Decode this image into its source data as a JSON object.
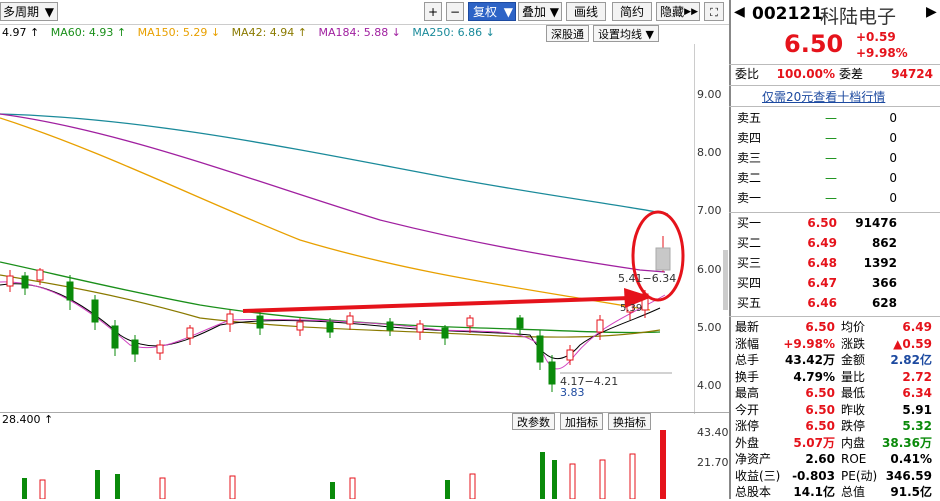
{
  "toolbar": {
    "period": "多周期",
    "plus": "+",
    "minus": "−",
    "fuquan": "复权",
    "diejia": "叠加",
    "huaxian": "画线",
    "jianyue": "简约",
    "yincang": "隐藏"
  },
  "ma_legend": [
    {
      "text": "4.97 ↑",
      "color": "#000000"
    },
    {
      "text": "MA60: 4.93 ↑",
      "color": "#1a8f1a"
    },
    {
      "text": "MA150: 5.29 ↓",
      "color": "#e8a000"
    },
    {
      "text": "MA42: 4.94 ↑",
      "color": "#8a7a00"
    },
    {
      "text": "MA184: 5.88 ↓",
      "color": "#a020a0"
    },
    {
      "text": "MA250: 6.86 ↓",
      "color": "#1a8a9a"
    }
  ],
  "chart_buttons": {
    "shenguntong": "深股通",
    "ma_settings": "设置均线"
  },
  "price_axis": [
    "9.00",
    "8.00",
    "7.00",
    "6.00",
    "5.00",
    "4.00"
  ],
  "annotations": {
    "range_high": "5.41−6.34",
    "range_low": "4.17−4.21",
    "low_mark": "3.83",
    "mid_label": "5.39"
  },
  "volume": {
    "left_label": "28.400 ↑",
    "buttons": [
      "改参数",
      "加指标",
      "换指标"
    ],
    "axis": [
      "43.40",
      "21.70"
    ]
  },
  "quote": {
    "code": "002121",
    "name": "科陆电子",
    "price": "6.50",
    "change": "+0.59",
    "change_pct": "+9.98%",
    "weibi_label": "委比",
    "weibi": "100.00%",
    "weicha_label": "委差",
    "weicha": "94724",
    "promo": "仅需20元查看十档行情",
    "sell": [
      {
        "label": "卖五",
        "price": "—",
        "vol": "0"
      },
      {
        "label": "卖四",
        "price": "—",
        "vol": "0"
      },
      {
        "label": "卖三",
        "price": "—",
        "vol": "0"
      },
      {
        "label": "卖二",
        "price": "—",
        "vol": "0"
      },
      {
        "label": "卖一",
        "price": "—",
        "vol": "0"
      }
    ],
    "buy": [
      {
        "label": "买一",
        "price": "6.50",
        "vol": "91476"
      },
      {
        "label": "买二",
        "price": "6.49",
        "vol": "862"
      },
      {
        "label": "买三",
        "price": "6.48",
        "vol": "1392"
      },
      {
        "label": "买四",
        "price": "6.47",
        "vol": "366"
      },
      {
        "label": "买五",
        "price": "6.46",
        "vol": "628"
      }
    ],
    "stats": [
      {
        "l1": "最新",
        "v1": "6.50",
        "c1": "red",
        "l2": "均价",
        "v2": "6.49",
        "c2": "red"
      },
      {
        "l1": "涨幅",
        "v1": "+9.98%",
        "c1": "red",
        "l2": "涨跌",
        "v2": "▲0.59",
        "c2": "red"
      },
      {
        "l1": "总手",
        "v1": "43.42万",
        "c1": "blk",
        "l2": "金额",
        "v2": "2.82亿",
        "c2": "blue"
      },
      {
        "l1": "换手",
        "v1": "4.79%",
        "c1": "blk",
        "l2": "量比",
        "v2": "2.72",
        "c2": "red"
      },
      {
        "l1": "最高",
        "v1": "6.50",
        "c1": "red",
        "l2": "最低",
        "v2": "6.34",
        "c2": "red"
      },
      {
        "l1": "今开",
        "v1": "6.50",
        "c1": "red",
        "l2": "昨收",
        "v2": "5.91",
        "c2": "blk"
      },
      {
        "l1": "涨停",
        "v1": "6.50",
        "c1": "red",
        "l2": "跌停",
        "v2": "5.32",
        "c2": "green"
      },
      {
        "l1": "外盘",
        "v1": "5.07万",
        "c1": "red",
        "l2": "内盘",
        "v2": "38.36万",
        "c2": "green"
      },
      {
        "l1": "净资产",
        "v1": "2.60",
        "c1": "blk",
        "l2": "ROE",
        "v2": "0.41%",
        "c2": "blk"
      },
      {
        "l1": "收益(三)",
        "v1": "-0.803",
        "c1": "blk",
        "l2": "PE(动)",
        "v2": "346.59",
        "c2": "blk"
      },
      {
        "l1": "总股本",
        "v1": "14.1亿",
        "c1": "blk",
        "l2": "总值",
        "v2": "91.5亿",
        "c2": "blk"
      }
    ]
  }
}
